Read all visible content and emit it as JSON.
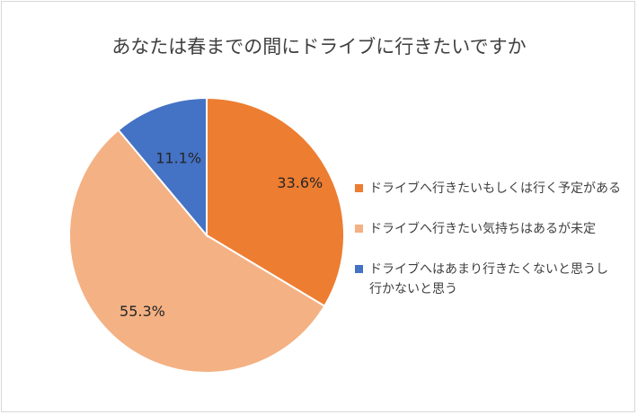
{
  "chart_data": {
    "type": "pie",
    "title": "あなたは春までの間にドライブに行きたいですか",
    "slices": [
      {
        "label": "ドライブへ行きたいもしくは行く予定がある",
        "value": 33.6,
        "display": "33.6%",
        "color": "#ed7d31"
      },
      {
        "label": "ドライブへ行きたい気持ちはあるが未定",
        "value": 55.3,
        "display": "55.3%",
        "color": "#f4b183"
      },
      {
        "label": "ドライブへはあまり行きたくないと思うし行かないと思う",
        "value": 11.1,
        "display": "11.1%",
        "color": "#4472c4"
      }
    ],
    "legend_position": "right"
  }
}
